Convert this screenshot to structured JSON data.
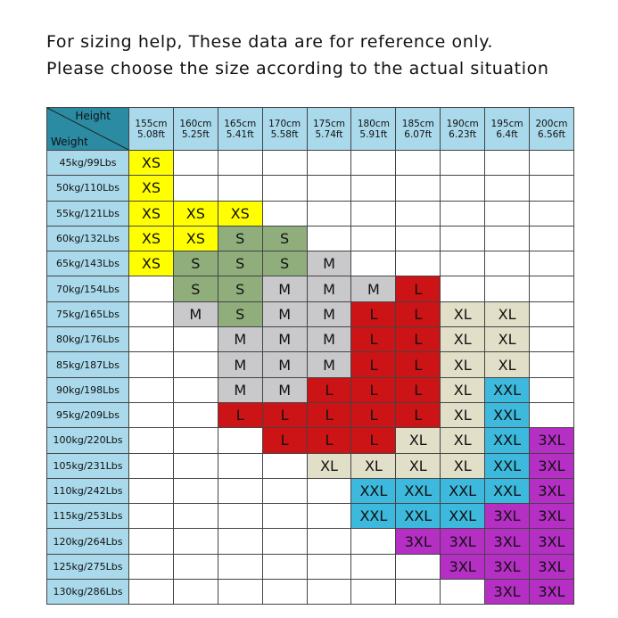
{
  "header": {
    "line1": "For sizing help, These data are for reference only.",
    "line2": "Please choose the size according to the actual situation"
  },
  "table": {
    "corner": {
      "top": "Height",
      "bottom": "Weight"
    },
    "colors": {
      "XS": "#ffff00",
      "S": "#8fae7c",
      "M": "#c9c9cb",
      "L": "#cc1316",
      "XL": "#e2dfc9",
      "XXL": "#3cb9dc",
      "3XL": "#b52fc4"
    },
    "heights": [
      {
        "cm": "155cm",
        "ft": "5.08ft"
      },
      {
        "cm": "160cm",
        "ft": "5.25ft"
      },
      {
        "cm": "165cm",
        "ft": "5.41ft"
      },
      {
        "cm": "170cm",
        "ft": "5.58ft"
      },
      {
        "cm": "175cm",
        "ft": "5.74ft"
      },
      {
        "cm": "180cm",
        "ft": "5.91ft"
      },
      {
        "cm": "185cm",
        "ft": "6.07ft"
      },
      {
        "cm": "190cm",
        "ft": "6.23ft"
      },
      {
        "cm": "195cm",
        "ft": "6.4ft"
      },
      {
        "cm": "200cm",
        "ft": "6.56ft"
      }
    ],
    "weights": [
      "45kg/99Lbs",
      "50kg/110Lbs",
      "55kg/121Lbs",
      "60kg/132Lbs",
      "65kg/143Lbs",
      "70kg/154Lbs",
      "75kg/165Lbs",
      "80kg/176Lbs",
      "85kg/187Lbs",
      "90kg/198Lbs",
      "95kg/209Lbs",
      "100kg/220Lbs",
      "105kg/231Lbs",
      "110kg/242Lbs",
      "115kg/253Lbs",
      "120kg/264Lbs",
      "125kg/275Lbs",
      "130kg/286Lbs"
    ],
    "rows": [
      [
        "XS",
        null,
        null,
        null,
        null,
        null,
        null,
        null,
        null,
        null
      ],
      [
        "XS",
        null,
        null,
        null,
        null,
        null,
        null,
        null,
        null,
        null
      ],
      [
        "XS",
        "XS",
        "XS",
        null,
        null,
        null,
        null,
        null,
        null,
        null
      ],
      [
        "XS",
        "XS",
        "S",
        "S",
        null,
        null,
        null,
        null,
        null,
        null
      ],
      [
        "XS",
        "S",
        "S",
        "S",
        "M",
        null,
        null,
        null,
        null,
        null
      ],
      [
        null,
        "S",
        "S",
        "M",
        "M",
        "M",
        "L",
        null,
        null,
        null
      ],
      [
        null,
        "M",
        "S",
        "M",
        "M",
        "L",
        "L",
        "XL",
        "XL",
        null
      ],
      [
        null,
        null,
        "M",
        "M",
        "M",
        "L",
        "L",
        "XL",
        "XL",
        null
      ],
      [
        null,
        null,
        "M",
        "M",
        "M",
        "L",
        "L",
        "XL",
        "XL",
        null
      ],
      [
        null,
        null,
        "M",
        "M",
        "L",
        "L",
        "L",
        "XL",
        "XXL",
        null
      ],
      [
        null,
        null,
        "L",
        "L",
        "L",
        "L",
        "L",
        "XL",
        "XXL",
        null
      ],
      [
        null,
        null,
        null,
        "L",
        "L",
        "L",
        "XL",
        "XL",
        "XXL",
        "3XL"
      ],
      [
        null,
        null,
        null,
        null,
        "XL",
        "XL",
        "XL",
        "XL",
        "XXL",
        "3XL"
      ],
      [
        null,
        null,
        null,
        null,
        null,
        "XXL",
        "XXL",
        "XXL",
        "XXL",
        "3XL"
      ],
      [
        null,
        null,
        null,
        null,
        null,
        "XXL",
        "XXL",
        "XXL",
        "3XL",
        "3XL"
      ],
      [
        null,
        null,
        null,
        null,
        null,
        null,
        "3XL",
        "3XL",
        "3XL",
        "3XL"
      ],
      [
        null,
        null,
        null,
        null,
        null,
        null,
        null,
        "3XL",
        "3XL",
        "3XL"
      ],
      [
        null,
        null,
        null,
        null,
        null,
        null,
        null,
        null,
        "3XL",
        "3XL"
      ]
    ]
  }
}
